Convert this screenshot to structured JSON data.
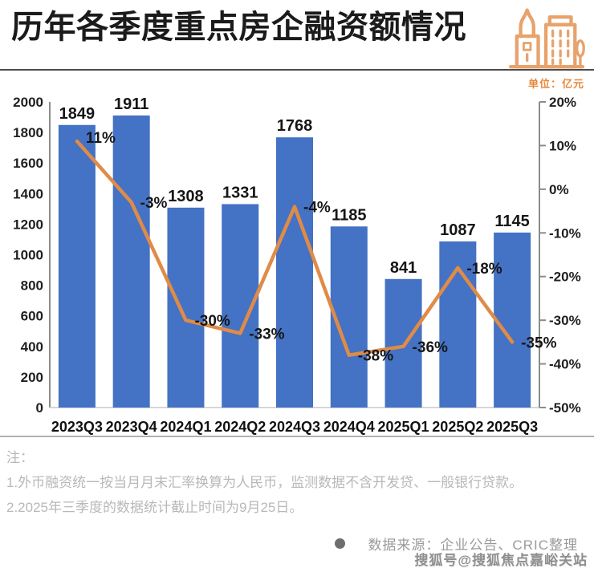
{
  "header": {
    "title": "历年各季度重点房企融资额情况",
    "unit_label": "单位：亿元",
    "icon": "buildings-icon"
  },
  "chart_data": {
    "type": "bar",
    "subtype": "bar-line-combo",
    "title": "历年各季度重点房企融资额情况",
    "unit": "亿元",
    "categories": [
      "2023Q3",
      "2023Q4",
      "2024Q1",
      "2024Q2",
      "2024Q3",
      "2024Q4",
      "2025Q1",
      "2025Q2",
      "2025Q3"
    ],
    "bar_values": [
      1849,
      1911,
      1308,
      1331,
      1768,
      1185,
      841,
      1087,
      1145
    ],
    "bar_labels": [
      "1849",
      "1911",
      "1308",
      "1331",
      "1768",
      "1185",
      "841",
      "1087",
      "1145"
    ],
    "line_values_pct": [
      11,
      -3,
      -30,
      -33,
      -4,
      -38,
      -36,
      -18,
      -35
    ],
    "line_labels": [
      "11%",
      "-3%",
      "-30%",
      "-33%",
      "-4%",
      "-38%",
      "-36%",
      "-18%",
      "-35%"
    ],
    "bar_color": "#4472C4",
    "line_color": "#E08B47",
    "left_axis": {
      "min": 0,
      "max": 2000,
      "step": 200
    },
    "right_axis": {
      "min": -50,
      "max": 20,
      "step": 10,
      "ticks": [
        "20%",
        "10%",
        "0%",
        "-10%",
        "-20%",
        "-30%",
        "-40%",
        "-50%"
      ]
    },
    "grid": "off",
    "legend": "none"
  },
  "notes": {
    "label": "注：",
    "items": [
      "1.外币融资统一按当月月末汇率换算为人民币，监测数据不含开发贷、一般银行贷款。",
      "2.2025年三季度的数据统计截止时间为9月25日。"
    ]
  },
  "footer": {
    "source": "数据来源：企业公告、CRIC整理",
    "watermark": "搜狐号@搜狐焦点嘉峪关站"
  },
  "colors": {
    "bar": "#4472C4",
    "line": "#E08B47",
    "accent_orange": "#E7893C",
    "icon_orange": "#E8A26C",
    "note_gray": "#b8b8b8",
    "source_gray": "#9a9a9a"
  }
}
